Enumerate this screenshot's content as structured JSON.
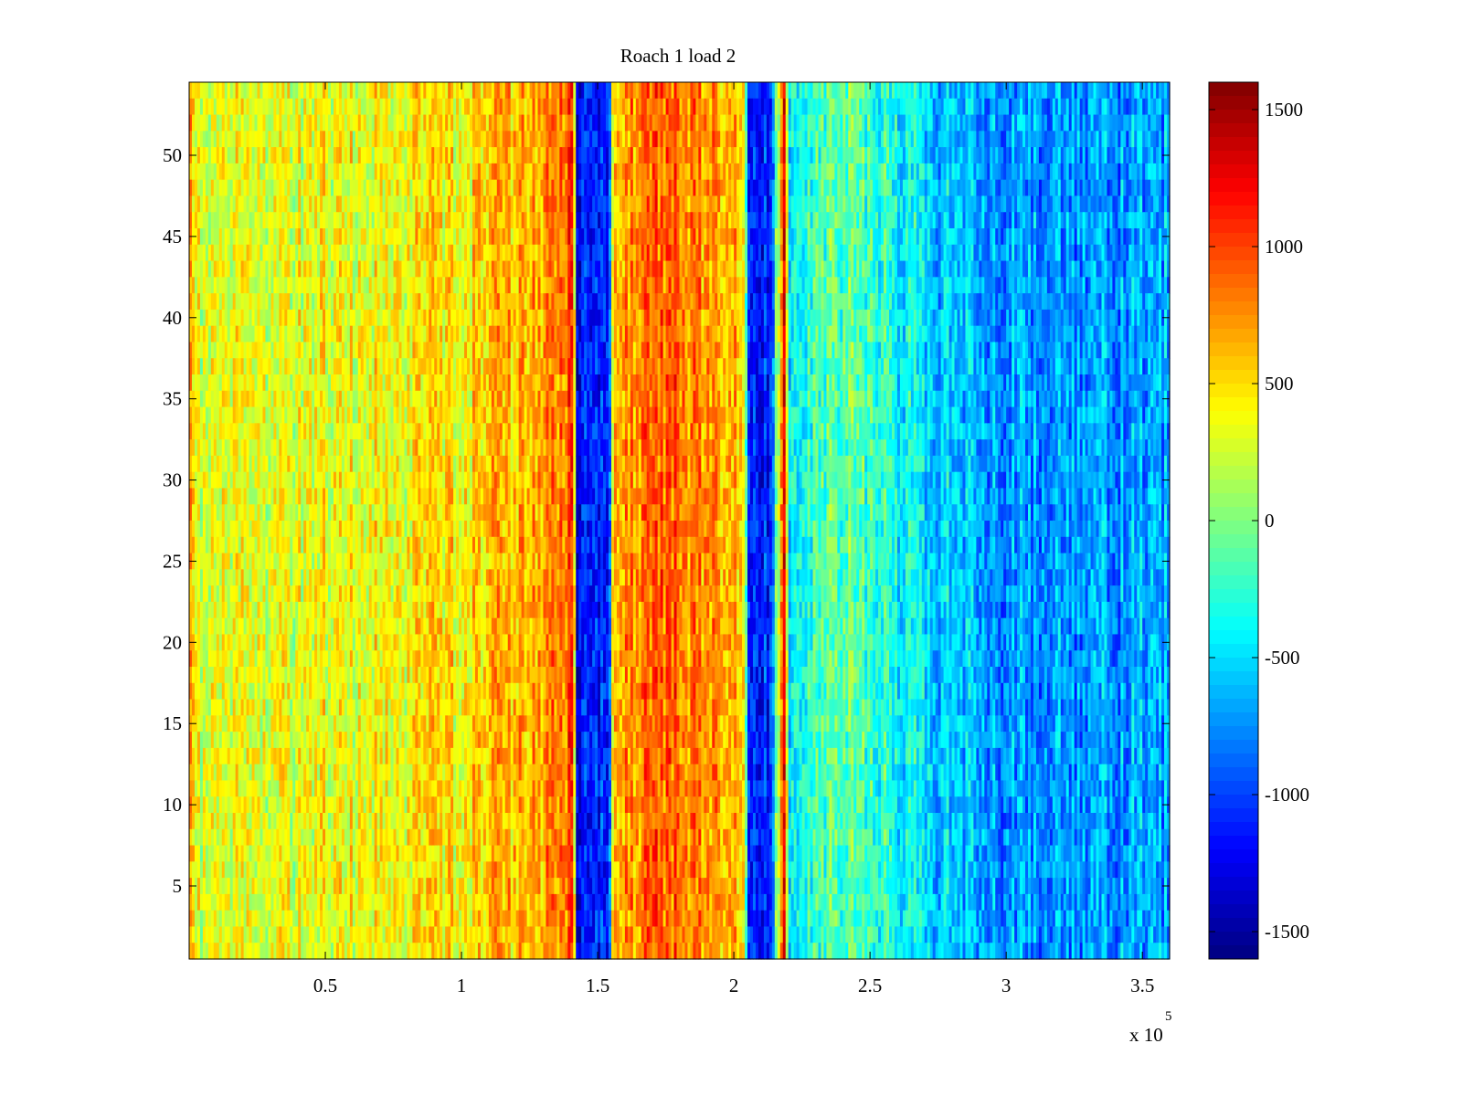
{
  "chart_data": {
    "type": "heatmap",
    "title": "Roach 1 load 2",
    "xlabel": "",
    "ylabel": "",
    "x_exponent_label": "x 10",
    "x_exponent": "5",
    "xlim": [
      0,
      360000
    ],
    "ylim": [
      0.5,
      54.5
    ],
    "x_ticks": [
      50000,
      100000,
      150000,
      200000,
      250000,
      300000,
      350000
    ],
    "x_tick_labels": [
      "0.5",
      "1",
      "1.5",
      "2",
      "2.5",
      "3",
      "3.5"
    ],
    "y_ticks": [
      5,
      10,
      15,
      20,
      25,
      30,
      35,
      40,
      45,
      50
    ],
    "y_tick_labels": [
      "5",
      "10",
      "15",
      "20",
      "25",
      "30",
      "35",
      "40",
      "45",
      "50"
    ],
    "n_rows": 54,
    "colormap": "jet",
    "colorbar": {
      "clim": [
        -1600,
        1600
      ],
      "ticks": [
        -1500,
        -1000,
        -500,
        0,
        500,
        1000,
        1500
      ],
      "tick_labels": [
        "-1500",
        "-1000",
        "-500",
        "0",
        "500",
        "1000",
        "1500"
      ]
    },
    "column_profile": {
      "x": [
        0,
        5000,
        20000,
        50000,
        100000,
        135000,
        141000,
        142500,
        154000,
        156000,
        175000,
        185000,
        204000,
        205500,
        214000,
        216000,
        218500,
        220000,
        235000,
        260000,
        290000,
        300000,
        330000,
        360000
      ],
      "value": [
        700,
        200,
        300,
        350,
        450,
        750,
        950,
        -1150,
        -1150,
        700,
        900,
        800,
        600,
        -1100,
        -1100,
        100,
        1250,
        -400,
        -50,
        -350,
        -700,
        -700,
        -750,
        -650
      ]
    },
    "noise_amplitude": 380
  }
}
